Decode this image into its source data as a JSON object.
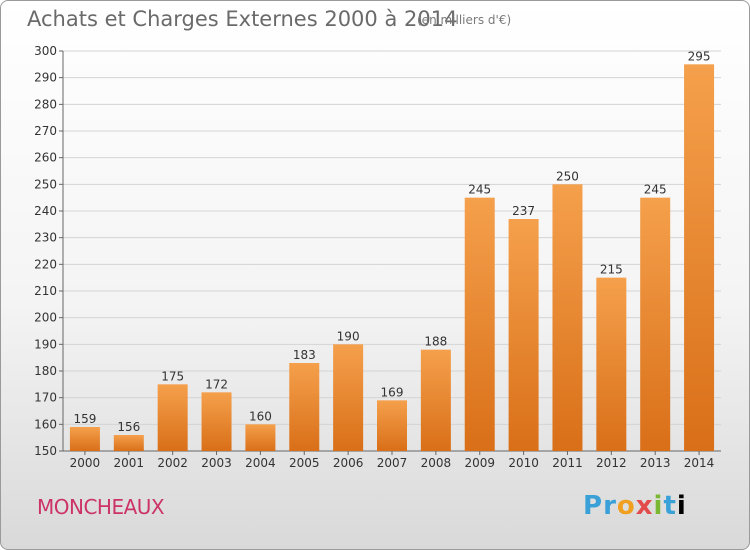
{
  "chart_data": {
    "type": "bar",
    "title": "Achats et Charges Externes 2000 à 2014",
    "unit_note": "(en milliers d'€)",
    "categories": [
      "2000",
      "2001",
      "2002",
      "2003",
      "2004",
      "2005",
      "2006",
      "2007",
      "2008",
      "2009",
      "2010",
      "2011",
      "2012",
      "2013",
      "2014"
    ],
    "values": [
      159,
      156,
      175,
      172,
      160,
      183,
      190,
      169,
      188,
      245,
      237,
      250,
      215,
      245,
      295
    ],
    "ylim": [
      150,
      300
    ],
    "yticks": [
      150,
      160,
      170,
      180,
      190,
      200,
      210,
      220,
      230,
      240,
      250,
      260,
      270,
      280,
      290,
      300
    ],
    "grid": true,
    "colors": {
      "bar_top": "#f5a04c",
      "bar_bottom": "#d96f18",
      "grid": "#d4d4d4",
      "text": "#333333"
    }
  },
  "commune": "MONCHEAUX",
  "logo": "Proxiti"
}
